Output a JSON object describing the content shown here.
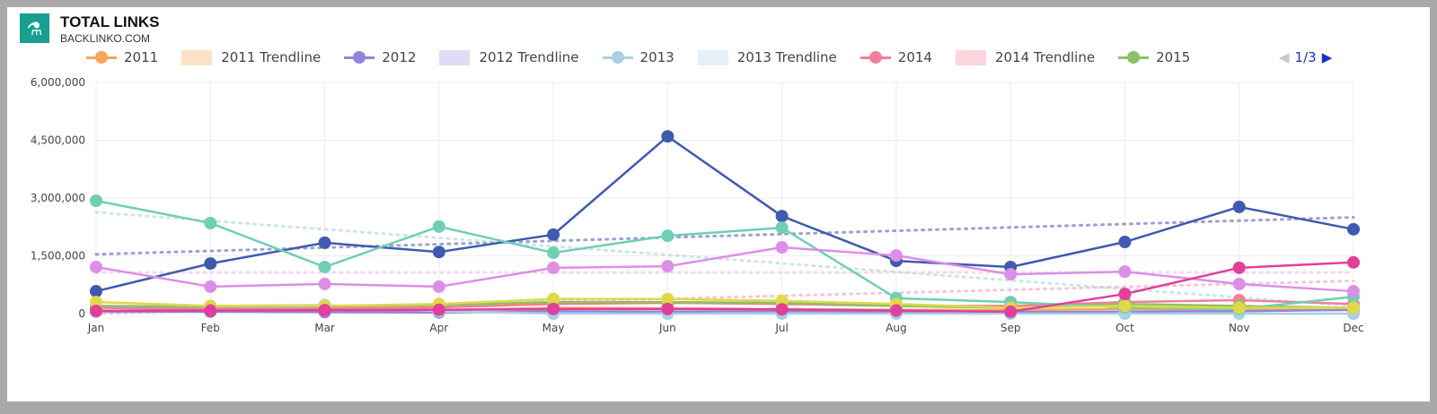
{
  "header": {
    "title": "TOTAL LINKS",
    "subtitle": "BACKLINKO.COM",
    "logo_icon": "microscope-icon"
  },
  "legend": {
    "items": [
      {
        "label": "2011",
        "kind": "line",
        "color": "#f4a65a"
      },
      {
        "label": "2011 Trendline",
        "kind": "box",
        "color": "#fde1c6"
      },
      {
        "label": "2012",
        "kind": "line",
        "color": "#8f86dc"
      },
      {
        "label": "2012 Trendline",
        "kind": "box",
        "color": "#e0dcf7"
      },
      {
        "label": "2013",
        "kind": "line",
        "color": "#a9d0e6"
      },
      {
        "label": "2013 Trendline",
        "kind": "box",
        "color": "#e4f1f7"
      },
      {
        "label": "2014",
        "kind": "line",
        "color": "#f07f9a"
      },
      {
        "label": "2014 Trendline",
        "kind": "box",
        "color": "#fbd6df"
      },
      {
        "label": "2015",
        "kind": "line",
        "color": "#8cc06a"
      }
    ],
    "page": "1/3"
  },
  "chart_data": {
    "type": "line",
    "title": "TOTAL LINKS",
    "categories": [
      "Jan",
      "Feb",
      "Mar",
      "Apr",
      "May",
      "Jun",
      "Jul",
      "Aug",
      "Sep",
      "Oct",
      "Nov",
      "Dec"
    ],
    "ylim": [
      0,
      6000000
    ],
    "yticks": [
      "0",
      "1,500,000",
      "3,000,000",
      "4,500,000",
      "6,000,000"
    ],
    "ytick_values": [
      0,
      1500000,
      3000000,
      4500000,
      6000000
    ],
    "grid": true,
    "legend_position": "top",
    "series": [
      {
        "name": "2011",
        "color": "#f4a65a",
        "values": [
          80000,
          60000,
          70000,
          90000,
          150000,
          140000,
          120000,
          100000,
          90000,
          120000,
          100000,
          90000
        ]
      },
      {
        "name": "2012",
        "color": "#8f86dc",
        "values": [
          50000,
          50000,
          40000,
          30000,
          60000,
          50000,
          60000,
          50000,
          40000,
          50000,
          60000,
          100000
        ]
      },
      {
        "name": "2013",
        "color": "#a9d0e6",
        "values": [
          50000,
          200000,
          220000,
          60000,
          0,
          0,
          0,
          0,
          0,
          0,
          0,
          0
        ]
      },
      {
        "name": "2014",
        "color": "#f07f9a",
        "values": [
          150000,
          120000,
          140000,
          160000,
          250000,
          280000,
          250000,
          200000,
          200000,
          300000,
          350000,
          250000
        ]
      },
      {
        "name": "2015",
        "color": "#8cc06a",
        "values": [
          200000,
          180000,
          190000,
          220000,
          300000,
          300000,
          280000,
          200000,
          150000,
          250000,
          200000,
          150000
        ]
      },
      {
        "color": "#3f5ab0",
        "values": [
          580000,
          1300000,
          1840000,
          1600000,
          2050000,
          4600000,
          2530000,
          1370000,
          1210000,
          1860000,
          2770000,
          2190000
        ]
      },
      {
        "color": "#6fcfb4",
        "values": [
          2930000,
          2350000,
          1210000,
          2260000,
          1580000,
          2020000,
          2230000,
          400000,
          300000,
          160000,
          120000,
          440000
        ]
      },
      {
        "color": "#dc8fe6",
        "values": [
          1210000,
          700000,
          770000,
          700000,
          1190000,
          1230000,
          1720000,
          1510000,
          1020000,
          1090000,
          770000,
          580000
        ]
      },
      {
        "color": "#e0d84a",
        "values": [
          300000,
          200000,
          200000,
          250000,
          380000,
          380000,
          330000,
          250000,
          150000,
          200000,
          150000,
          150000
        ]
      },
      {
        "color": "#e0409a",
        "values": [
          70000,
          80000,
          90000,
          100000,
          120000,
          120000,
          110000,
          80000,
          50000,
          510000,
          1190000,
          1330000
        ]
      }
    ],
    "trendlines": [
      {
        "color": "#5a66b0",
        "values": [
          1540000,
          2500000
        ]
      },
      {
        "color": "#a8d8d0",
        "values": [
          2630000,
          200000
        ]
      },
      {
        "color": "#f0b8f0",
        "values": [
          1070000,
          1070000
        ]
      },
      {
        "color": "#f0a0c0",
        "values": [
          0,
          850000
        ]
      }
    ]
  }
}
